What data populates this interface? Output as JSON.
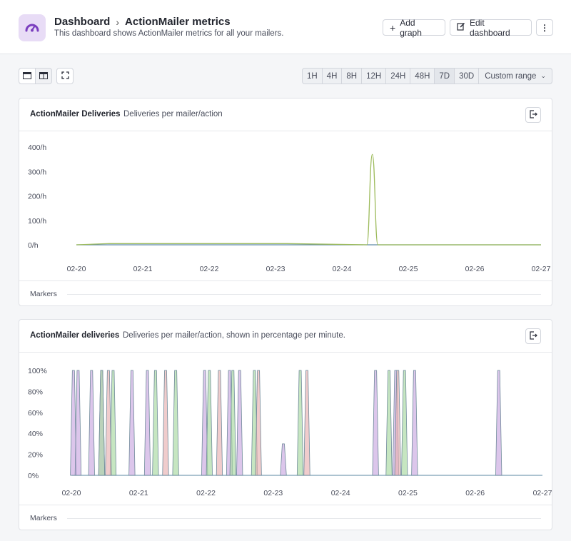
{
  "header": {
    "breadcrumb_root": "Dashboard",
    "breadcrumb_current": "ActionMailer metrics",
    "subtitle": "This dashboard shows ActionMailer metrics for all your mailers.",
    "add_graph_label": "Add graph",
    "edit_dashboard_label": "Edit dashboard",
    "logo_icon": "gauge-icon",
    "accent_color": "#7b3fbf"
  },
  "toolbar": {
    "ranges": [
      "1H",
      "4H",
      "8H",
      "12H",
      "24H",
      "48H",
      "7D",
      "30D"
    ],
    "custom_range_label": "Custom range",
    "selected_range": "7D"
  },
  "panels": [
    {
      "title": "ActionMailer Deliveries",
      "description": "Deliveries per mailer/action",
      "markers_label": "Markers"
    },
    {
      "title": "ActionMailer deliveries",
      "description": "Deliveries per mailer/action, shown in percentage per minute.",
      "markers_label": "Markers"
    }
  ],
  "chart_data": [
    {
      "type": "line",
      "title": "ActionMailer Deliveries",
      "x": [
        "02-20",
        "02-21",
        "02-22",
        "02-23",
        "02-24",
        "02-25",
        "02-26",
        "02-27"
      ],
      "yticks": [
        "0/h",
        "100/h",
        "200/h",
        "300/h",
        "400/h"
      ],
      "ylim": [
        0,
        400
      ],
      "grid": false,
      "series": [
        {
          "color": "#9dbb5c",
          "points": [
            [
              "02-20",
              0
            ],
            [
              "02-20 12:00",
              5
            ],
            [
              "02-21 18:00",
              5
            ],
            [
              "02-23 04:00",
              5
            ],
            [
              "02-24 09:00",
              0
            ],
            [
              "02-24 11:00",
              370
            ],
            [
              "02-24 13:00",
              0
            ],
            [
              "02-27",
              0
            ]
          ]
        },
        {
          "color": "#5e8aa8",
          "points": [
            [
              "02-20",
              0
            ],
            [
              "02-27",
              0
            ]
          ]
        }
      ]
    },
    {
      "type": "area",
      "title": "ActionMailer deliveries",
      "x": [
        "02-20",
        "02-21",
        "02-22",
        "02-23",
        "02-24",
        "02-25",
        "02-26",
        "02-27"
      ],
      "yticks": [
        "0%",
        "20%",
        "40%",
        "60%",
        "80%",
        "100%"
      ],
      "ylim": [
        0,
        100
      ],
      "grid": false,
      "series": [
        {
          "color": "#c9a8e0",
          "peaks_day": [
            0.03,
            0.1,
            0.3,
            0.45,
            0.9,
            1.13,
            1.98,
            2.35,
            2.5,
            3.15,
            4.52,
            4.82,
            5.1,
            6.35
          ],
          "peaks_value": [
            100,
            100,
            100,
            100,
            100,
            100,
            100,
            100,
            100,
            30,
            100,
            100,
            100,
            100
          ]
        },
        {
          "color": "#a8d8a0",
          "peaks_day": [
            0.45,
            0.62,
            1.25,
            1.55,
            2.05,
            2.4,
            2.72,
            3.4,
            4.72,
            4.95
          ],
          "peaks_value": [
            100,
            100,
            100,
            100,
            100,
            100,
            100,
            100,
            100,
            100
          ]
        },
        {
          "color": "#e8b0b0",
          "peaks_day": [
            0.55,
            1.4,
            2.2,
            2.78,
            3.5,
            4.85
          ],
          "peaks_value": [
            100,
            100,
            100,
            100,
            100,
            100
          ]
        }
      ]
    }
  ],
  "colors": {
    "series_green": "#9dbb5c",
    "series_blue": "#5e8aa8",
    "series_purple": "#c9a8e0",
    "series_green_light": "#a8d8a0",
    "series_pink": "#e8b0b0"
  }
}
